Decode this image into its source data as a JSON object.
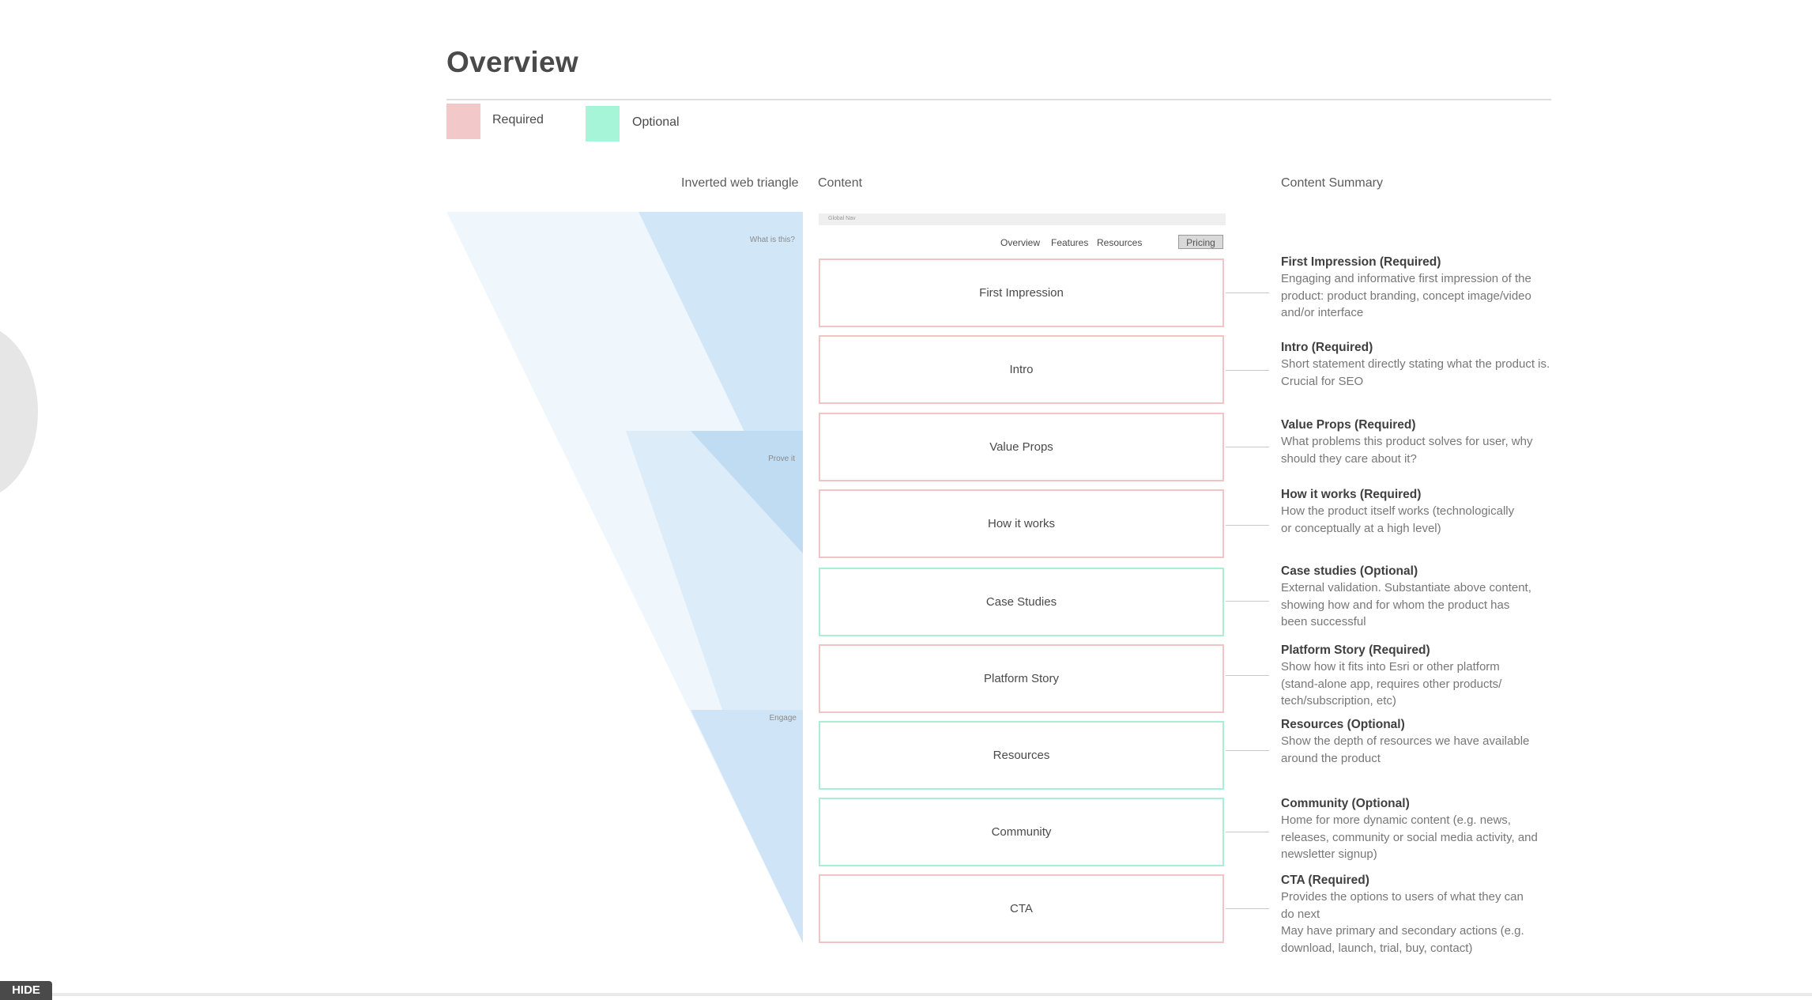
{
  "page": {
    "title": "Overview",
    "hide_label": "HIDE"
  },
  "legend": {
    "required": {
      "label": "Required",
      "color": "#f2c8c9"
    },
    "optional": {
      "label": "Optional",
      "color": "#a6f5d8"
    }
  },
  "columns": {
    "triangle": "Inverted web triangle",
    "content": "Content",
    "summary": "Content Summary"
  },
  "stages": {
    "what": "What is this?",
    "prove": "Prove it",
    "engage": "Engage"
  },
  "globalnav": {
    "label": "Global Nav",
    "links": [
      "Overview",
      "Features",
      "Resources"
    ],
    "pricing": "Pricing"
  },
  "sections": [
    {
      "label": "First Impression",
      "type": "required"
    },
    {
      "label": "Intro",
      "type": "required"
    },
    {
      "label": "Value Props",
      "type": "required"
    },
    {
      "label": "How it works",
      "type": "required"
    },
    {
      "label": "Case Studies",
      "type": "optional"
    },
    {
      "label": "Platform Story",
      "type": "required"
    },
    {
      "label": "Resources",
      "type": "optional"
    },
    {
      "label": "Community",
      "type": "optional"
    },
    {
      "label": "CTA",
      "type": "required"
    }
  ],
  "summaries": [
    {
      "title": "First Impression (Required)",
      "desc": "Engaging and informative first impression of the\nproduct: product branding, concept image/video\nand/or interface"
    },
    {
      "title": "Intro (Required)",
      "desc": "Short statement directly stating what the product is.\nCrucial for SEO"
    },
    {
      "title": "Value Props (Required)",
      "desc": "What problems this product solves for user, why\nshould they care about it?"
    },
    {
      "title": "How it works (Required)",
      "desc": "How the product itself works (technologically\nor conceptually at a high level)"
    },
    {
      "title": "Case studies (Optional)",
      "desc": "External validation. Substantiate above content,\nshowing how and for whom the product has\nbeen successful"
    },
    {
      "title": "Platform Story (Required)",
      "desc": "Show how it fits into Esri or other platform\n(stand-alone app, requires other products/\ntech/subscription, etc)"
    },
    {
      "title": "Resources (Optional)",
      "desc": "Show the depth of resources we have available\naround the product"
    },
    {
      "title": "Community (Optional)",
      "desc": "Home for more dynamic content (e.g. news,\nreleases, community or social media activity, and\nnewsletter signup)"
    },
    {
      "title": "CTA (Required)",
      "desc": "Provides the options to users of what they can\ndo next\nMay have primary and secondary actions (e.g.\ndownload, launch, trial, buy, contact)"
    }
  ]
}
